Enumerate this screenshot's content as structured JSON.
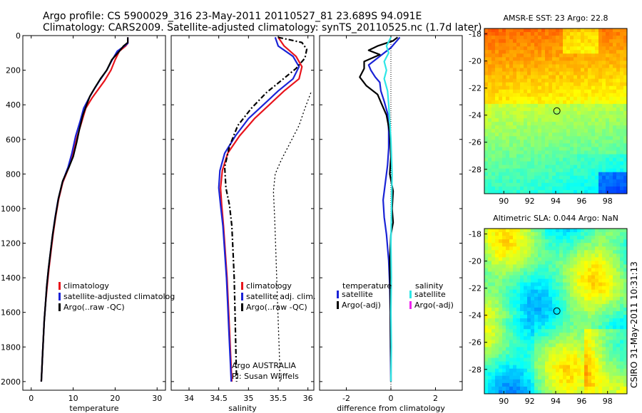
{
  "header": {
    "line1": "Argo profile: CS 5900029_316 23-May-2011 20110527_81 23.689S 94.091E",
    "line2": "Climatology: CARS2009. Satellite-adjusted climatology: synTS_20110525.nc (1.7d later)"
  },
  "side_label": "CSIRO 31-May-2011 10:31:13",
  "colors": {
    "climatology": "#e8141c",
    "satellite": "#1a23d6",
    "argo": "#000000",
    "satellite_salinity": "#2ee6e6",
    "argo_adj_salinity": "#ee22ee"
  },
  "chart_data": [
    {
      "type": "line",
      "id": "temperature",
      "xlabel": "temperature",
      "xlim": [
        -2,
        32
      ],
      "ylim": [
        2050,
        0
      ],
      "xticks": [
        0,
        10,
        20,
        30
      ],
      "yticks": [
        0,
        200,
        400,
        600,
        800,
        1000,
        1200,
        1400,
        1600,
        1800,
        2000
      ],
      "legend": [
        "climatology",
        "satellite-adjusted climatolog",
        "Argo(..raw -QC)"
      ],
      "series": [
        {
          "name": "climatology",
          "color": "#e8141c",
          "style": "solid",
          "points": [
            [
              23.0,
              10
            ],
            [
              23.0,
              45
            ],
            [
              22.5,
              60
            ],
            [
              21.0,
              90
            ],
            [
              20.0,
              140
            ],
            [
              19.0,
              200
            ],
            [
              17.5,
              260
            ],
            [
              16.0,
              310
            ],
            [
              14.5,
              360
            ],
            [
              13.0,
              420
            ],
            [
              12.0,
              500
            ],
            [
              11.0,
              580
            ],
            [
              10.0,
              680
            ],
            [
              9.0,
              760
            ],
            [
              7.5,
              850
            ],
            [
              6.5,
              950
            ],
            [
              5.8,
              1050
            ],
            [
              5.2,
              1150
            ],
            [
              4.7,
              1250
            ],
            [
              4.2,
              1350
            ],
            [
              3.8,
              1450
            ],
            [
              3.4,
              1550
            ],
            [
              3.1,
              1650
            ],
            [
              2.9,
              1750
            ],
            [
              2.7,
              1850
            ],
            [
              2.5,
              1950
            ],
            [
              2.4,
              2000
            ]
          ]
        },
        {
          "name": "satellite-adjusted climatolog",
          "color": "#1a23d6",
          "style": "solid",
          "points": [
            [
              23.0,
              10
            ],
            [
              23.0,
              45
            ],
            [
              22.2,
              60
            ],
            [
              20.5,
              90
            ],
            [
              19.3,
              140
            ],
            [
              18.0,
              200
            ],
            [
              16.3,
              260
            ],
            [
              15.0,
              310
            ],
            [
              13.8,
              360
            ],
            [
              12.5,
              420
            ],
            [
              11.6,
              500
            ],
            [
              10.6,
              580
            ],
            [
              9.7,
              680
            ],
            [
              8.8,
              760
            ],
            [
              7.4,
              850
            ],
            [
              6.4,
              950
            ],
            [
              5.7,
              1050
            ],
            [
              5.1,
              1150
            ],
            [
              4.6,
              1250
            ],
            [
              4.1,
              1350
            ],
            [
              3.7,
              1450
            ],
            [
              3.4,
              1550
            ],
            [
              3.1,
              1650
            ],
            [
              2.9,
              1750
            ],
            [
              2.7,
              1850
            ],
            [
              2.5,
              1950
            ],
            [
              2.4,
              2000
            ]
          ]
        },
        {
          "name": "Argo(..raw -QC)",
          "color": "#000000",
          "style": "solid",
          "points": [
            [
              23.0,
              10
            ],
            [
              23.0,
              40
            ],
            [
              22.0,
              60
            ],
            [
              21.0,
              90
            ],
            [
              19.2,
              140
            ],
            [
              18.0,
              200
            ],
            [
              16.5,
              250
            ],
            [
              15.2,
              300
            ],
            [
              14.0,
              350
            ],
            [
              13.2,
              400
            ],
            [
              12.3,
              460
            ],
            [
              11.5,
              540
            ],
            [
              10.8,
              620
            ],
            [
              10.0,
              700
            ],
            [
              9.0,
              760
            ],
            [
              7.5,
              840
            ],
            [
              6.5,
              940
            ],
            [
              5.8,
              1040
            ],
            [
              5.1,
              1150
            ],
            [
              4.6,
              1250
            ],
            [
              4.1,
              1350
            ],
            [
              3.7,
              1450
            ],
            [
              3.4,
              1550
            ],
            [
              3.1,
              1650
            ],
            [
              2.9,
              1750
            ],
            [
              2.7,
              1850
            ],
            [
              2.5,
              1950
            ],
            [
              2.4,
              2000
            ]
          ]
        }
      ]
    },
    {
      "type": "line",
      "id": "salinity",
      "xlabel": "salinity",
      "xlim": [
        33.7,
        36.1
      ],
      "ylim": [
        2050,
        0
      ],
      "xticks": [
        34,
        34.5,
        35,
        35.5,
        36
      ],
      "yticks": [
        0,
        200,
        400,
        600,
        800,
        1000,
        1200,
        1400,
        1600,
        1800,
        2000
      ],
      "legend": [
        "climatology",
        "satellite adj. clim.",
        "Argo(..raw -QC)"
      ],
      "annotation": [
        "Argo AUSTRALIA",
        "PI: Susan Wijffels"
      ],
      "series": [
        {
          "name": "climatology",
          "color": "#e8141c",
          "style": "solid",
          "points": [
            [
              35.5,
              10
            ],
            [
              35.6,
              60
            ],
            [
              35.8,
              120
            ],
            [
              35.9,
              180
            ],
            [
              35.85,
              250
            ],
            [
              35.6,
              320
            ],
            [
              35.35,
              400
            ],
            [
              35.1,
              480
            ],
            [
              34.85,
              580
            ],
            [
              34.65,
              680
            ],
            [
              34.56,
              780
            ],
            [
              34.53,
              880
            ],
            [
              34.55,
              980
            ],
            [
              34.58,
              1100
            ],
            [
              34.61,
              1250
            ],
            [
              34.64,
              1400
            ],
            [
              34.66,
              1550
            ],
            [
              34.68,
              1700
            ],
            [
              34.7,
              1850
            ],
            [
              34.72,
              2000
            ]
          ]
        },
        {
          "name": "satellite adj. clim.",
          "color": "#1a23d6",
          "style": "solid",
          "points": [
            [
              35.45,
              10
            ],
            [
              35.5,
              60
            ],
            [
              35.75,
              120
            ],
            [
              35.85,
              180
            ],
            [
              35.75,
              250
            ],
            [
              35.5,
              320
            ],
            [
              35.25,
              400
            ],
            [
              35.0,
              480
            ],
            [
              34.78,
              580
            ],
            [
              34.6,
              680
            ],
            [
              34.52,
              780
            ],
            [
              34.5,
              880
            ],
            [
              34.53,
              980
            ],
            [
              34.57,
              1100
            ],
            [
              34.6,
              1250
            ],
            [
              34.63,
              1400
            ],
            [
              34.65,
              1550
            ],
            [
              34.67,
              1700
            ],
            [
              34.69,
              1850
            ],
            [
              34.71,
              2000
            ]
          ]
        },
        {
          "name": "Argo(..raw -QC)",
          "color": "#000000",
          "style": "dashdot",
          "points": [
            [
              35.5,
              10
            ],
            [
              35.9,
              40
            ],
            [
              35.98,
              80
            ],
            [
              35.95,
              130
            ],
            [
              35.8,
              190
            ],
            [
              35.55,
              260
            ],
            [
              35.3,
              330
            ],
            [
              35.05,
              420
            ],
            [
              34.82,
              520
            ],
            [
              34.68,
              640
            ],
            [
              34.6,
              760
            ],
            [
              34.62,
              880
            ],
            [
              34.68,
              980
            ],
            [
              34.72,
              1100
            ],
            [
              34.74,
              1250
            ],
            [
              34.76,
              1400
            ],
            [
              34.77,
              1550
            ],
            [
              34.78,
              1700
            ],
            [
              34.79,
              1850
            ],
            [
              34.8,
              2000
            ]
          ]
        },
        {
          "name": "",
          "color": "#000000",
          "style": "dotted",
          "points": [
            [
              36.05,
              330
            ],
            [
              35.95,
              420
            ],
            [
              35.85,
              520
            ],
            [
              35.7,
              620
            ],
            [
              35.55,
              720
            ],
            [
              35.45,
              800
            ],
            [
              35.42,
              900
            ],
            [
              35.44,
              1050
            ],
            [
              35.46,
              1250
            ],
            [
              35.48,
              1450
            ],
            [
              35.5,
              1650
            ],
            [
              35.52,
              1850
            ],
            [
              35.53,
              2000
            ]
          ]
        }
      ]
    },
    {
      "type": "line",
      "id": "difference",
      "xlabel": "difference from climatology",
      "xlim": [
        -3.2,
        3.2
      ],
      "ylim": [
        2050,
        0
      ],
      "xticks": [
        -2,
        0,
        2
      ],
      "yticks": [
        0,
        200,
        400,
        600,
        800,
        1000,
        1200,
        1400,
        1600,
        1800,
        2000
      ],
      "legend_temperature_title": "temperature",
      "legend_salinity_title": "salinity",
      "legend": [
        "satellite",
        "Argo(-adj)",
        "satellite",
        "Argo(-adj)"
      ],
      "series": [
        {
          "name": "satellite",
          "color": "#1a23d6",
          "style": "solid",
          "points": [
            [
              0.4,
              10
            ],
            [
              0.2,
              40
            ],
            [
              0.0,
              70
            ],
            [
              -0.3,
              100
            ],
            [
              -0.7,
              140
            ],
            [
              -1.0,
              170
            ],
            [
              -0.9,
              200
            ],
            [
              -0.7,
              240
            ],
            [
              -0.5,
              270
            ],
            [
              -0.45,
              320
            ],
            [
              -0.3,
              380
            ],
            [
              -0.15,
              450
            ],
            [
              -0.1,
              550
            ],
            [
              -0.1,
              650
            ],
            [
              -0.15,
              750
            ],
            [
              -0.25,
              850
            ],
            [
              -0.35,
              950
            ],
            [
              -0.3,
              1050
            ],
            [
              -0.2,
              1150
            ],
            [
              -0.1,
              1300
            ],
            [
              -0.05,
              1450
            ],
            [
              -0.03,
              1600
            ],
            [
              -0.02,
              1800
            ],
            [
              0.0,
              2000
            ]
          ]
        },
        {
          "name": "Argo(-adj)",
          "color": "#000000",
          "style": "solid",
          "points": [
            [
              0.3,
              10
            ],
            [
              0.1,
              30
            ],
            [
              -0.6,
              60
            ],
            [
              -1.0,
              85
            ],
            [
              -0.5,
              110
            ],
            [
              -1.2,
              150
            ],
            [
              -1.2,
              190
            ],
            [
              -1.4,
              240
            ],
            [
              -1.1,
              290
            ],
            [
              -0.6,
              340
            ],
            [
              -0.4,
              400
            ],
            [
              -0.2,
              460
            ],
            [
              -0.05,
              560
            ],
            [
              0.0,
              700
            ],
            [
              -0.05,
              800
            ],
            [
              0.1,
              900
            ],
            [
              0.05,
              1000
            ],
            [
              0.1,
              1080
            ],
            [
              0.0,
              1150
            ],
            [
              -0.05,
              1300
            ],
            [
              -0.03,
              1500
            ],
            [
              -0.02,
              1700
            ],
            [
              0.0,
              1900
            ],
            [
              0.0,
              2000
            ]
          ]
        },
        {
          "name": "satellite",
          "color": "#2ee6e6",
          "style": "solid",
          "points": [
            [
              0.0,
              10
            ],
            [
              -0.2,
              60
            ],
            [
              -0.1,
              100
            ],
            [
              -0.3,
              150
            ],
            [
              -0.2,
              200
            ],
            [
              -0.3,
              250
            ],
            [
              -0.15,
              320
            ],
            [
              -0.1,
              400
            ],
            [
              -0.05,
              500
            ],
            [
              0.0,
              600
            ],
            [
              0.05,
              800
            ],
            [
              0.03,
              1000
            ],
            [
              0.0,
              1200
            ],
            [
              0.02,
              1400
            ],
            [
              0.0,
              1600
            ],
            [
              0.02,
              1800
            ],
            [
              0.0,
              2000
            ]
          ]
        },
        {
          "name": "Argo(-adj)",
          "color": "#ee22ee",
          "style": "solid",
          "points": []
        }
      ]
    },
    {
      "type": "heatmap",
      "id": "sst-map",
      "title": "AMSR-E SST: 23 Argo: 22.8",
      "xlim": [
        88.5,
        99.5
      ],
      "ylim": [
        -29.8,
        -17.6
      ],
      "xticks": [
        90,
        92,
        94,
        96,
        98
      ],
      "yticks": [
        -18,
        -20,
        -22,
        -24,
        -26,
        -28
      ],
      "marker": [
        94.09,
        -23.69
      ]
    },
    {
      "type": "heatmap",
      "id": "sla-map",
      "title": "Altimetric SLA: 0.044 Argo: NaN",
      "xlim": [
        88.5,
        99.5
      ],
      "ylim": [
        -29.8,
        -17.6
      ],
      "xticks": [
        90,
        92,
        94,
        96,
        98
      ],
      "yticks": [
        -18,
        -20,
        -22,
        -24,
        -26,
        -28
      ],
      "marker": [
        94.09,
        -23.69
      ]
    }
  ]
}
